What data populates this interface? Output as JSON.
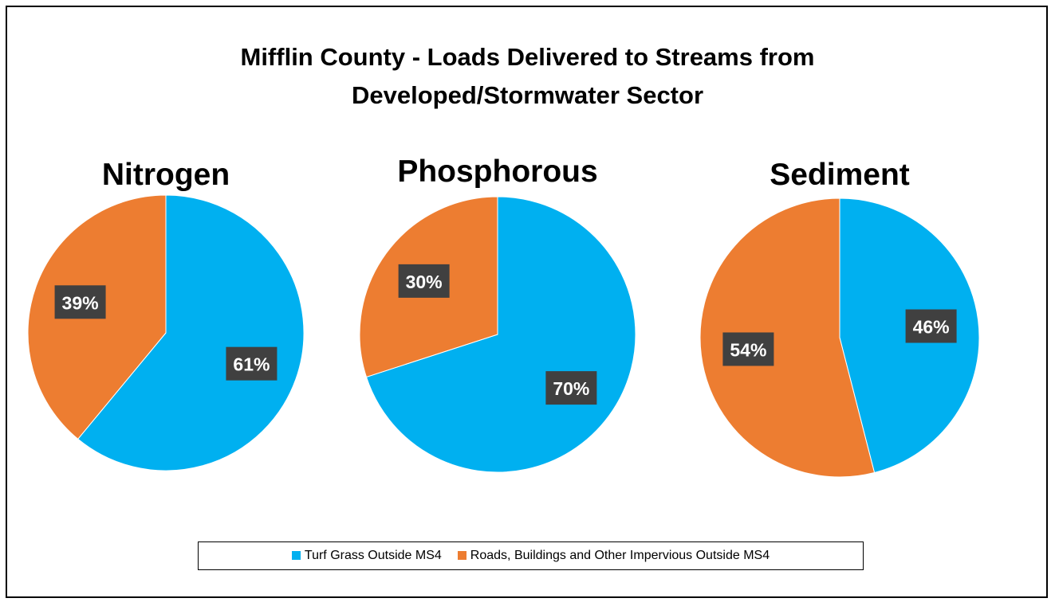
{
  "title": "Mifflin County - Loads Delivered to Streams from Developed/Stormwater Sector",
  "chart_data": [
    {
      "type": "pie",
      "title": "Nitrogen",
      "categories": [
        "Turf Grass Outside MS4",
        "Roads, Buildings and Other Impervious Outside MS4"
      ],
      "values": [
        61,
        39
      ],
      "value_labels": [
        "61%",
        "39%"
      ],
      "colors": [
        "#00b0f0",
        "#ed7d31"
      ]
    },
    {
      "type": "pie",
      "title": "Phosphorous",
      "categories": [
        "Turf Grass Outside MS4",
        "Roads, Buildings and Other Impervious Outside MS4"
      ],
      "values": [
        70,
        30
      ],
      "value_labels": [
        "70%",
        "30%"
      ],
      "colors": [
        "#00b0f0",
        "#ed7d31"
      ]
    },
    {
      "type": "pie",
      "title": "Sediment",
      "categories": [
        "Turf Grass Outside MS4",
        "Roads, Buildings and Other Impervious Outside MS4"
      ],
      "values": [
        46,
        54
      ],
      "value_labels": [
        "46%",
        "54%"
      ],
      "colors": [
        "#00b0f0",
        "#ed7d31"
      ]
    }
  ]
}
